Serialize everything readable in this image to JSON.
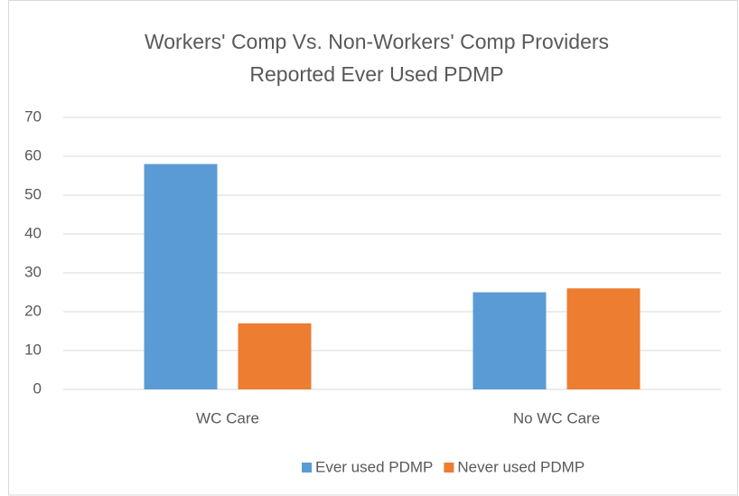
{
  "chart_data": {
    "type": "bar",
    "title": [
      "Workers' Comp Vs. Non-Workers' Comp Providers",
      "Reported Ever Used PDMP"
    ],
    "categories": [
      "WC Care",
      "No WC Care"
    ],
    "series": [
      {
        "name": "Ever used PDMP",
        "color": "#5b9bd5",
        "values": [
          58,
          25
        ]
      },
      {
        "name": "Never used PDMP",
        "color": "#ed7d31",
        "values": [
          17,
          26
        ]
      }
    ],
    "ylim": [
      0,
      70
    ],
    "yticks": [
      0,
      10,
      20,
      30,
      40,
      50,
      60,
      70
    ],
    "grid": true,
    "legend": "bottom"
  }
}
